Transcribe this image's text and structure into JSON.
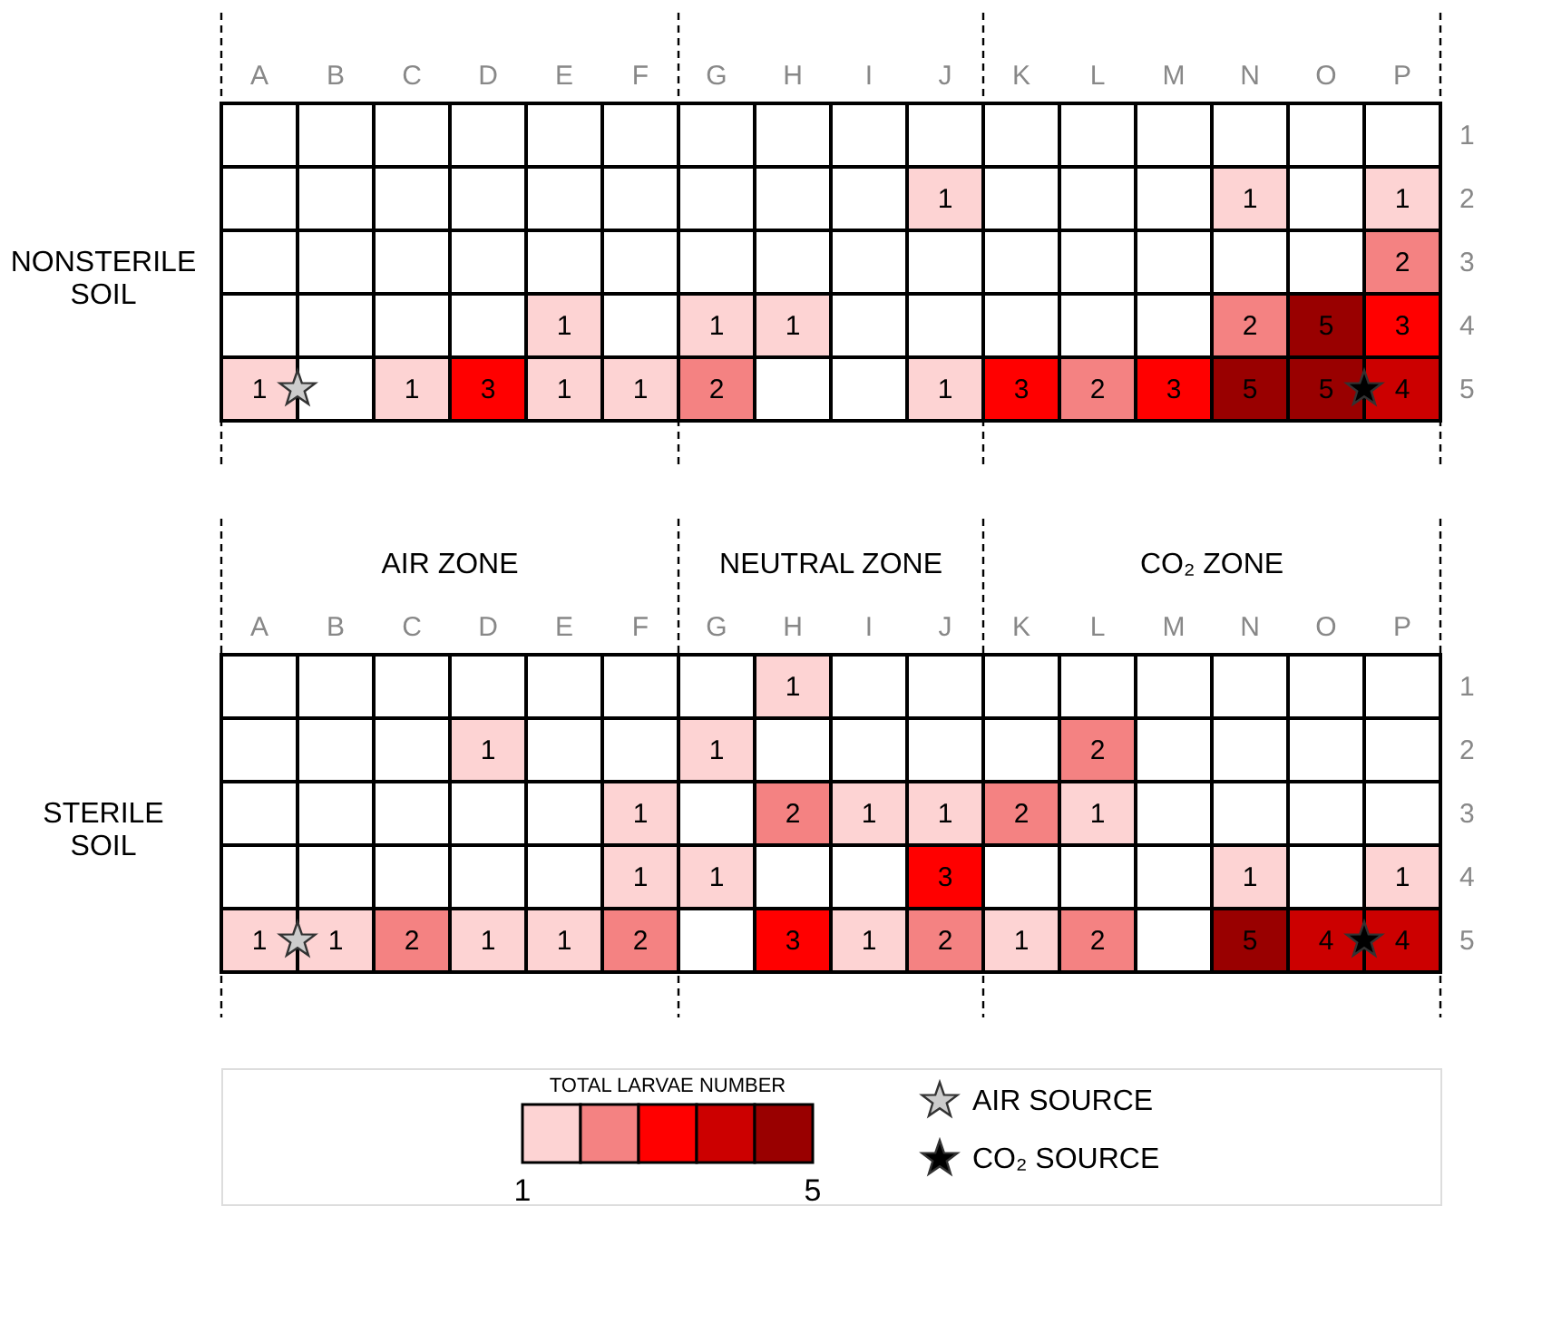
{
  "chart_data": [
    {
      "type": "heatmap",
      "ylabel": "NONSTERILE SOIL",
      "categories": [
        "A",
        "B",
        "C",
        "D",
        "E",
        "F",
        "G",
        "H",
        "I",
        "J",
        "K",
        "L",
        "M",
        "N",
        "O",
        "P"
      ],
      "y_categories": [
        "1",
        "2",
        "3",
        "4",
        "5"
      ],
      "cells": [
        [
          null,
          null,
          null,
          null,
          null,
          null,
          null,
          null,
          null,
          null,
          null,
          null,
          null,
          null,
          null,
          null
        ],
        [
          null,
          null,
          null,
          null,
          null,
          null,
          null,
          null,
          null,
          1,
          null,
          null,
          null,
          1,
          null,
          1
        ],
        [
          null,
          null,
          null,
          null,
          null,
          null,
          null,
          null,
          null,
          null,
          null,
          null,
          null,
          null,
          null,
          2
        ],
        [
          null,
          null,
          null,
          null,
          1,
          null,
          1,
          1,
          null,
          null,
          null,
          null,
          null,
          2,
          5,
          3
        ],
        [
          1,
          null,
          1,
          3,
          1,
          1,
          2,
          null,
          null,
          1,
          3,
          2,
          3,
          5,
          5,
          4
        ]
      ],
      "colors": [
        "#fdd3d3",
        "#f48282",
        "#ff0000",
        "#cc0000",
        "#990000"
      ],
      "data_labels": true
    },
    {
      "type": "heatmap",
      "ylabel": "STERILE SOIL",
      "categories": [
        "A",
        "B",
        "C",
        "D",
        "E",
        "F",
        "G",
        "H",
        "I",
        "J",
        "K",
        "L",
        "M",
        "N",
        "O",
        "P"
      ],
      "y_categories": [
        "1",
        "2",
        "3",
        "4",
        "5"
      ],
      "cells": [
        [
          null,
          null,
          null,
          null,
          null,
          null,
          null,
          1,
          null,
          null,
          null,
          null,
          null,
          null,
          null,
          null
        ],
        [
          null,
          null,
          null,
          1,
          null,
          null,
          1,
          null,
          null,
          null,
          null,
          2,
          null,
          null,
          null,
          null
        ],
        [
          null,
          null,
          null,
          null,
          null,
          1,
          null,
          2,
          1,
          1,
          2,
          1,
          null,
          null,
          null,
          null
        ],
        [
          null,
          null,
          null,
          null,
          null,
          1,
          1,
          null,
          null,
          3,
          null,
          null,
          null,
          1,
          null,
          1
        ],
        [
          1,
          1,
          2,
          1,
          1,
          2,
          null,
          3,
          1,
          2,
          1,
          2,
          null,
          5,
          4,
          4
        ]
      ],
      "clim": [
        1,
        5
      ],
      "cticks": [
        1,
        5
      ],
      "clabel": "TOTAL LARVAE NUMBER",
      "colors": [
        "#fdd3d3",
        "#f48282",
        "#ff0000",
        "#cc0000",
        "#990000"
      ],
      "data_labels": true,
      "annotations": [
        "AIR ZONE",
        "NEUTRAL ZONE",
        "CO₂ ZONE",
        "AIR SOURCE",
        "CO₂ SOURCE"
      ]
    }
  ]
}
